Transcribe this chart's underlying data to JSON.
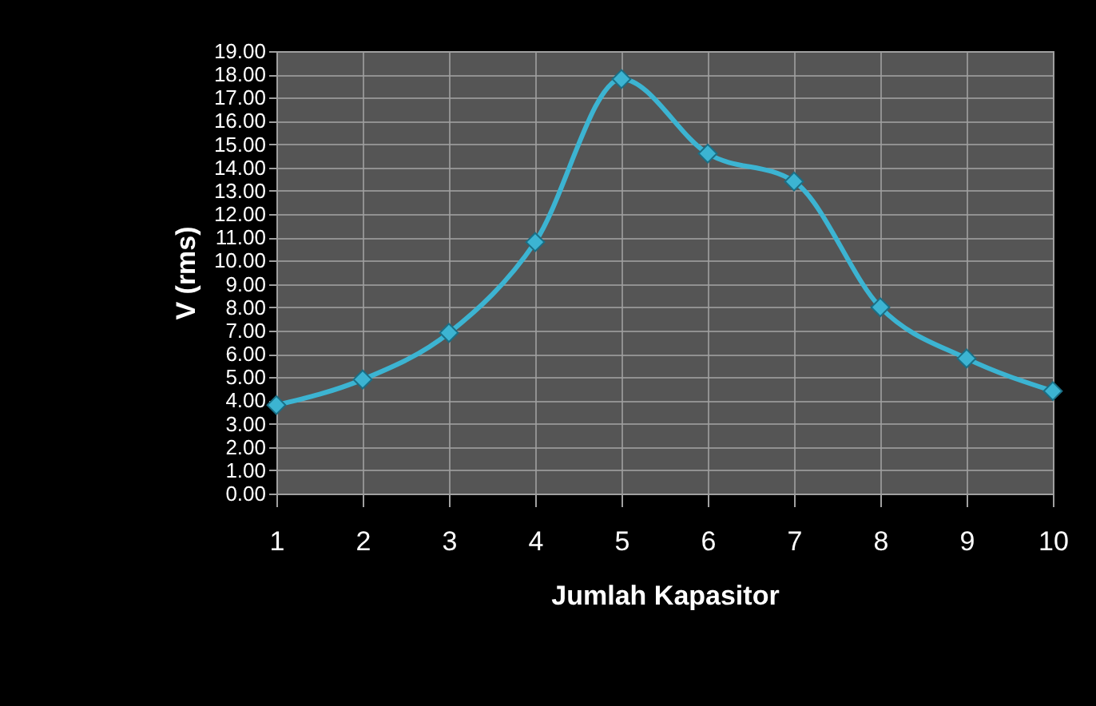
{
  "chart_data": {
    "type": "line",
    "xlabel": "Jumlah Kapasitor",
    "ylabel": "V (rms)",
    "x": [
      1,
      2,
      3,
      4,
      5,
      6,
      7,
      8,
      9,
      10
    ],
    "series": [
      {
        "color": "#3cb4d2",
        "values": [
          3.8,
          4.9,
          6.9,
          10.8,
          17.8,
          14.6,
          13.4,
          8.0,
          5.8,
          4.4
        ]
      }
    ],
    "xlim": [
      1,
      10
    ],
    "xticks": [
      1,
      2,
      3,
      4,
      5,
      6,
      7,
      8,
      9,
      10
    ],
    "ylim": [
      0,
      19
    ],
    "yticks": [
      {
        "value": 0,
        "label": "0.00"
      },
      {
        "value": 1,
        "label": "1.00"
      },
      {
        "value": 2,
        "label": "2.00"
      },
      {
        "value": 3,
        "label": "3.00"
      },
      {
        "value": 4,
        "label": "4.00"
      },
      {
        "value": 5,
        "label": "5.00"
      },
      {
        "value": 6,
        "label": "6.00"
      },
      {
        "value": 7,
        "label": "7.00"
      },
      {
        "value": 8,
        "label": "8.00"
      },
      {
        "value": 9,
        "label": "9.00"
      },
      {
        "value": 10,
        "label": "10.00"
      },
      {
        "value": 11,
        "label": "11.00"
      },
      {
        "value": 12,
        "label": "12.00"
      },
      {
        "value": 13,
        "label": "13.00"
      },
      {
        "value": 14,
        "label": "14.00"
      },
      {
        "value": 15,
        "label": "15.00"
      },
      {
        "value": 16,
        "label": "16.00"
      },
      {
        "value": 17,
        "label": "17.00"
      },
      {
        "value": 18,
        "label": "18.00"
      },
      {
        "value": 19,
        "label": "19.00"
      }
    ],
    "grid": true,
    "marker": "diamond",
    "line_style": "solid"
  }
}
